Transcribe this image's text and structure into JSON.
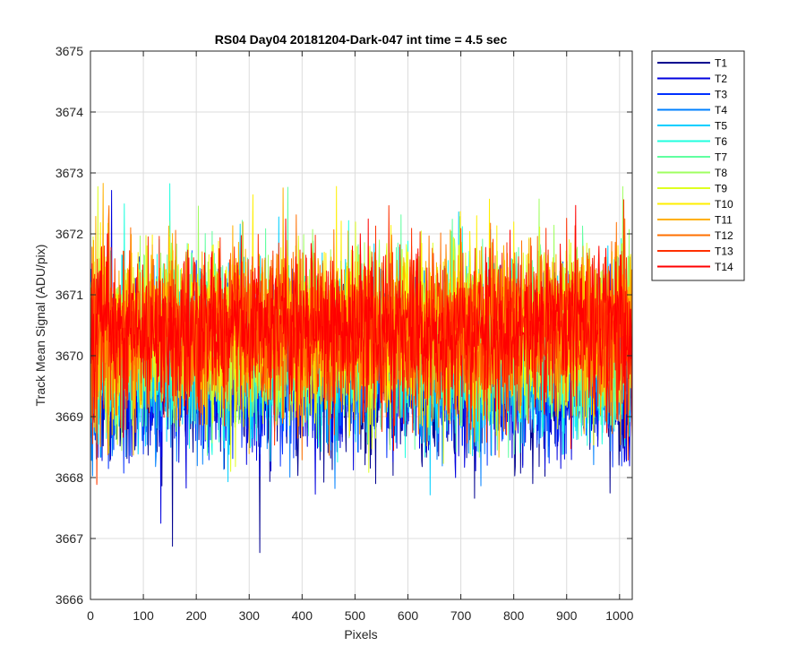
{
  "chart_data": {
    "type": "line",
    "title": "RS04 Day04 20181204-Dark-047 int time = 4.5 sec",
    "xlabel": "Pixels",
    "ylabel": "Track Mean Signal (ADU/pix)",
    "xlim": [
      0,
      1024
    ],
    "ylim": [
      3666,
      3675
    ],
    "xticks": [
      "0",
      "100",
      "200",
      "300",
      "400",
      "500",
      "600",
      "700",
      "800",
      "900",
      "1000"
    ],
    "yticks": [
      "3666",
      "3667",
      "3668",
      "3669",
      "3670",
      "3671",
      "3672",
      "3673",
      "3674",
      "3675"
    ],
    "grid": true,
    "legend_position": "outside-top-right",
    "n_points": 1024,
    "noise_description_units": "ADU/pix",
    "series": [
      {
        "name": "T1",
        "color": "#00008F",
        "mean": 3669.6,
        "spread": 0.9
      },
      {
        "name": "T2",
        "color": "#0000DF",
        "mean": 3669.7,
        "spread": 0.9
      },
      {
        "name": "T3",
        "color": "#0030FF",
        "mean": 3669.8,
        "spread": 0.9
      },
      {
        "name": "T4",
        "color": "#0080FF",
        "mean": 3669.9,
        "spread": 0.9
      },
      {
        "name": "T5",
        "color": "#00CFFF",
        "mean": 3670.0,
        "spread": 0.9
      },
      {
        "name": "T6",
        "color": "#20FFDF",
        "mean": 3670.1,
        "spread": 0.9
      },
      {
        "name": "T7",
        "color": "#60FFA0",
        "mean": 3670.2,
        "spread": 0.9
      },
      {
        "name": "T8",
        "color": "#9FFF60",
        "mean": 3670.3,
        "spread": 0.9
      },
      {
        "name": "T9",
        "color": "#DFFF20",
        "mean": 3670.4,
        "spread": 0.9
      },
      {
        "name": "T10",
        "color": "#FFEF00",
        "mean": 3670.4,
        "spread": 0.9
      },
      {
        "name": "T11",
        "color": "#FFB000",
        "mean": 3670.4,
        "spread": 0.9
      },
      {
        "name": "T12",
        "color": "#FF7000",
        "mean": 3670.4,
        "spread": 0.9
      },
      {
        "name": "T13",
        "color": "#FF3000",
        "mean": 3670.4,
        "spread": 0.9
      },
      {
        "name": "T14",
        "color": "#FF0000",
        "mean": 3670.4,
        "spread": 0.8
      }
    ]
  }
}
